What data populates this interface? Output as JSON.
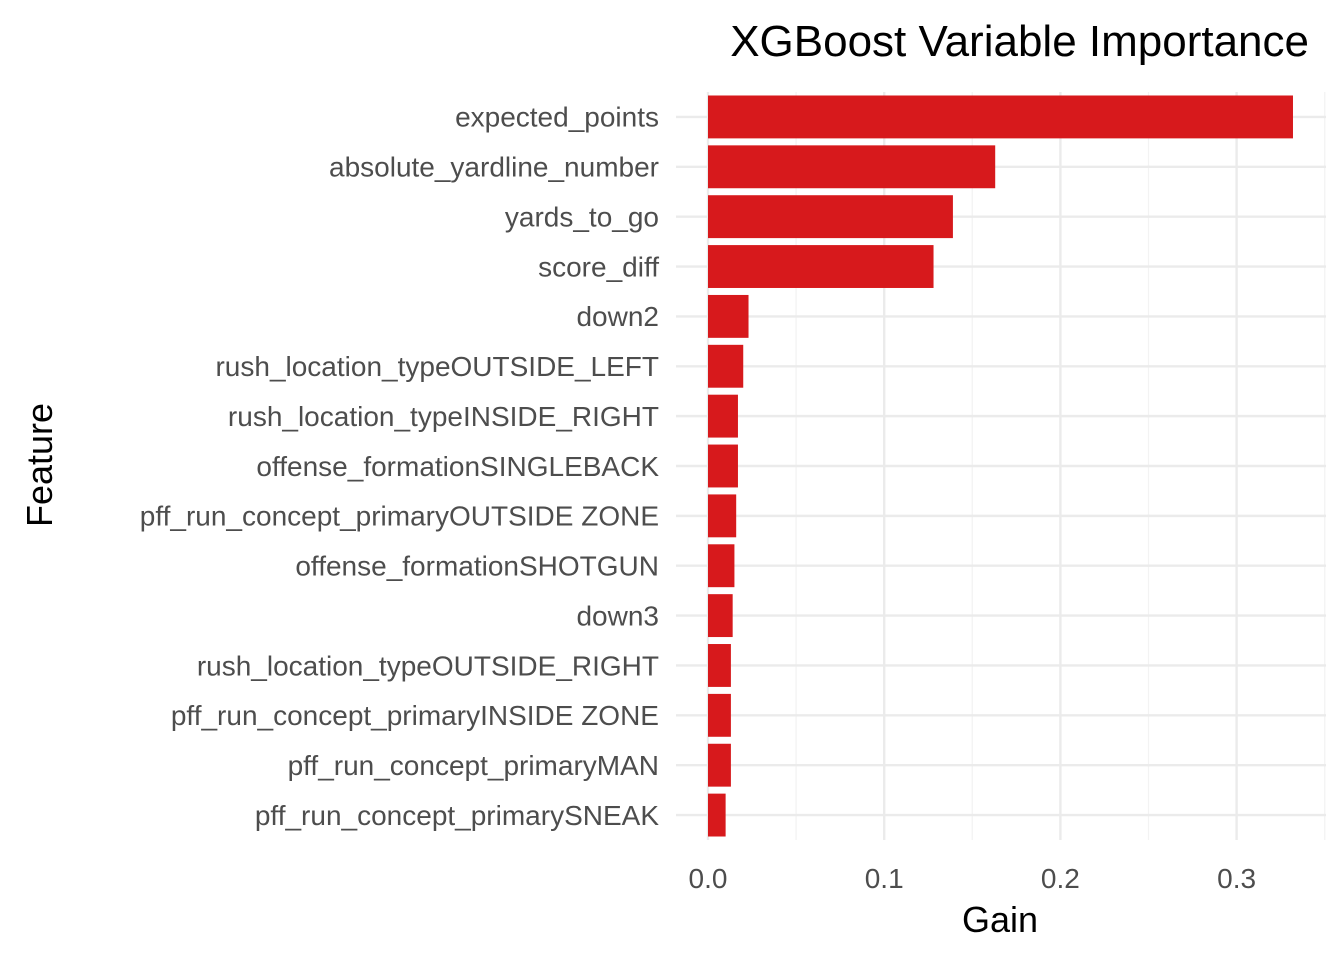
{
  "chart_data": {
    "type": "bar",
    "orientation": "horizontal",
    "title": "XGBoost Variable Importance",
    "xlabel": "Gain",
    "ylabel": "Feature",
    "xlim": [
      -0.025,
      0.35
    ],
    "xticks": [
      0.0,
      0.1,
      0.2,
      0.3
    ],
    "xtick_labels": [
      "0.0",
      "0.1",
      "0.2",
      "0.3"
    ],
    "grid": true,
    "bar_color": "#d7191c",
    "categories": [
      "expected_points",
      "absolute_yardline_number",
      "yards_to_go",
      "score_diff",
      "down2",
      "rush_location_typeOUTSIDE_LEFT",
      "rush_location_typeINSIDE_RIGHT",
      "offense_formationSINGLEBACK",
      "pff_run_concept_primaryOUTSIDE ZONE",
      "offense_formationSHOTGUN",
      "down3",
      "rush_location_typeOUTSIDE_RIGHT",
      "pff_run_concept_primaryINSIDE ZONE",
      "pff_run_concept_primaryMAN",
      "pff_run_concept_primarySNEAK"
    ],
    "values": [
      0.332,
      0.163,
      0.139,
      0.128,
      0.023,
      0.02,
      0.017,
      0.017,
      0.016,
      0.015,
      0.014,
      0.013,
      0.013,
      0.013,
      0.01
    ]
  }
}
